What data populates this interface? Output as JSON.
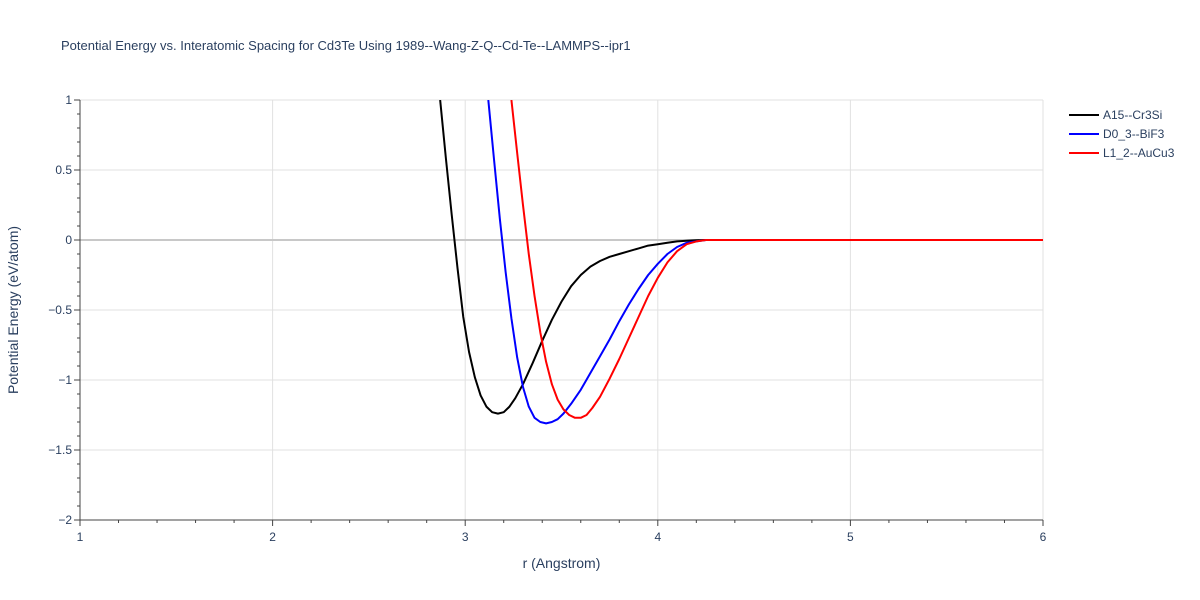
{
  "chart_data": {
    "type": "line",
    "title": "Potential Energy vs. Interatomic Spacing for Cd3Te Using 1989--Wang-Z-Q--Cd-Te--LAMMPS--ipr1",
    "xlabel": "r (Angstrom)",
    "ylabel": "Potential Energy (eV/atom)",
    "xlim": [
      1,
      6
    ],
    "ylim": [
      -2,
      1
    ],
    "xticks": [
      "1",
      "2",
      "3",
      "4",
      "5",
      "6"
    ],
    "yticks": [
      "1",
      "0.5",
      "0",
      "−0.5",
      "−1",
      "−1.5",
      "−2"
    ],
    "grid": true,
    "legend_position": "top-right",
    "series": [
      {
        "name": "A15--Cr3Si",
        "color": "#000000",
        "x": [
          2.87,
          2.9,
          2.93,
          2.96,
          2.99,
          3.02,
          3.05,
          3.08,
          3.11,
          3.14,
          3.17,
          3.2,
          3.23,
          3.26,
          3.3,
          3.35,
          3.4,
          3.45,
          3.5,
          3.55,
          3.6,
          3.65,
          3.7,
          3.75,
          3.8,
          3.85,
          3.9,
          3.95,
          4.0,
          4.05,
          4.1,
          4.15,
          4.2,
          4.25,
          4.3,
          4.4,
          4.6,
          5.0,
          5.5,
          6.0
        ],
        "y": [
          1.0,
          0.58,
          0.18,
          -0.2,
          -0.55,
          -0.8,
          -0.98,
          -1.11,
          -1.19,
          -1.23,
          -1.24,
          -1.23,
          -1.19,
          -1.13,
          -1.03,
          -0.88,
          -0.72,
          -0.57,
          -0.44,
          -0.33,
          -0.25,
          -0.19,
          -0.15,
          -0.12,
          -0.1,
          -0.08,
          -0.06,
          -0.04,
          -0.03,
          -0.02,
          -0.01,
          -0.005,
          -0.002,
          0.0,
          0.0,
          0.0,
          0.0,
          0.0,
          0.0,
          0.0
        ]
      },
      {
        "name": "D0_3--BiF3",
        "color": "#0000ff",
        "x": [
          3.12,
          3.15,
          3.18,
          3.21,
          3.24,
          3.27,
          3.3,
          3.33,
          3.36,
          3.39,
          3.42,
          3.45,
          3.48,
          3.51,
          3.55,
          3.6,
          3.65,
          3.7,
          3.75,
          3.8,
          3.85,
          3.9,
          3.95,
          4.0,
          4.05,
          4.1,
          4.15,
          4.2,
          4.25,
          4.3,
          4.4,
          4.6,
          5.0,
          5.5,
          6.0
        ],
        "y": [
          1.0,
          0.57,
          0.15,
          -0.23,
          -0.56,
          -0.84,
          -1.05,
          -1.19,
          -1.27,
          -1.3,
          -1.31,
          -1.3,
          -1.28,
          -1.24,
          -1.17,
          -1.07,
          -0.95,
          -0.83,
          -0.71,
          -0.58,
          -0.46,
          -0.35,
          -0.25,
          -0.17,
          -0.1,
          -0.05,
          -0.02,
          -0.01,
          0.0,
          0.0,
          0.0,
          0.0,
          0.0,
          0.0,
          0.0
        ]
      },
      {
        "name": "L1_2--AuCu3",
        "color": "#ff0000",
        "x": [
          3.24,
          3.27,
          3.3,
          3.33,
          3.36,
          3.39,
          3.42,
          3.45,
          3.48,
          3.51,
          3.54,
          3.57,
          3.6,
          3.63,
          3.66,
          3.7,
          3.75,
          3.8,
          3.85,
          3.9,
          3.95,
          4.0,
          4.05,
          4.1,
          4.15,
          4.2,
          4.25,
          4.3,
          4.4,
          4.6,
          5.0,
          5.5,
          6.0
        ],
        "y": [
          1.0,
          0.62,
          0.25,
          -0.1,
          -0.4,
          -0.66,
          -0.87,
          -1.03,
          -1.14,
          -1.21,
          -1.25,
          -1.27,
          -1.27,
          -1.25,
          -1.2,
          -1.12,
          -0.99,
          -0.85,
          -0.7,
          -0.55,
          -0.4,
          -0.27,
          -0.16,
          -0.08,
          -0.03,
          -0.01,
          0.0,
          0.0,
          0.0,
          0.0,
          0.0,
          0.0,
          0.0
        ]
      }
    ]
  }
}
